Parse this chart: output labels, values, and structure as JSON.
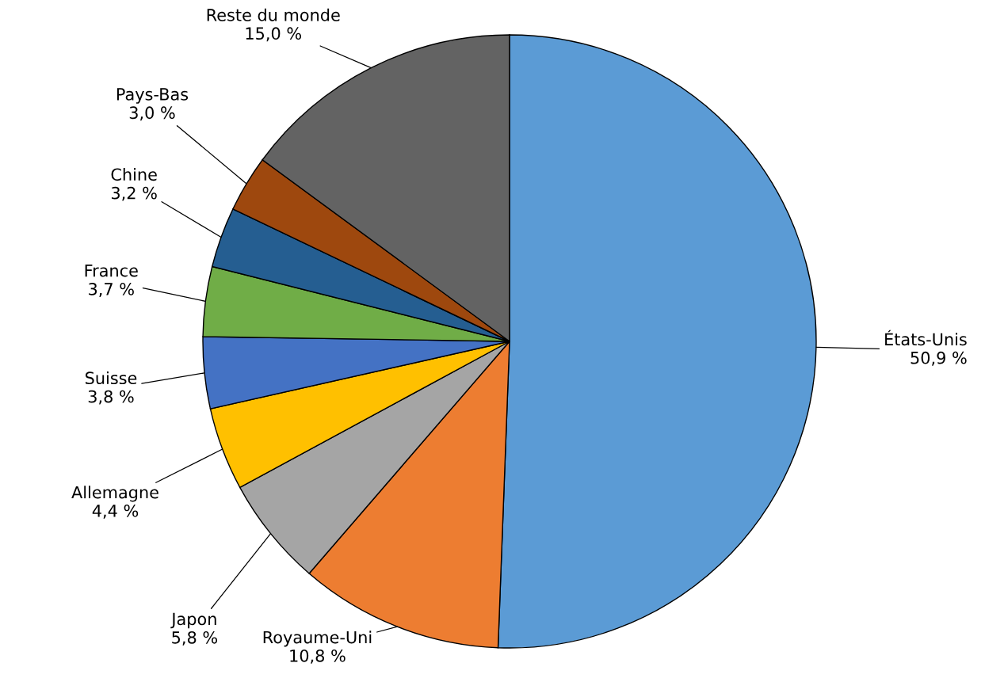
{
  "chart_data": {
    "type": "pie",
    "categories": [
      "États-Unis",
      "Royaume-Uni",
      "Japon",
      "Allemagne",
      "Suisse",
      "France",
      "Chine",
      "Pays-Bas",
      "Reste du monde"
    ],
    "values": [
      50.9,
      10.8,
      5.8,
      4.4,
      3.8,
      3.7,
      3.2,
      3.0,
      15.0
    ],
    "value_labels": [
      "50,9 %",
      "10,8 %",
      "5,8 %",
      "4,4 %",
      "3,8 %",
      "3,7 %",
      "3,2 %",
      "3,0 %",
      "15,0 %"
    ],
    "colors": [
      "#5b9bd5",
      "#ed7d31",
      "#a5a5a5",
      "#ffc000",
      "#4472c4",
      "#70ad47",
      "#255e91",
      "#9e480e",
      "#636363"
    ]
  }
}
